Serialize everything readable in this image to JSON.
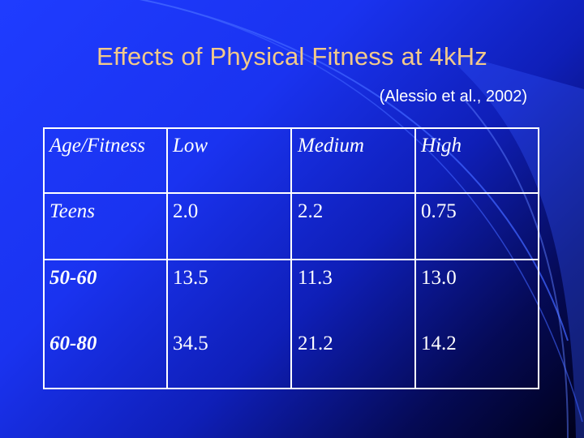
{
  "slide": {
    "title": "Effects of Physical Fitness at 4kHz",
    "citation": "(Alessio et al., 2002)"
  },
  "table": {
    "headers": [
      "Age/Fitness",
      "Low",
      "Medium",
      "High"
    ],
    "rows": [
      {
        "label": "Teens",
        "values": [
          "2.0",
          "2.2",
          "0.75"
        ]
      },
      {
        "label": "50-60",
        "values": [
          "13.5",
          "11.3",
          "13.0"
        ]
      },
      {
        "label": "60-80",
        "values": [
          "34.5",
          "21.2",
          "14.2"
        ]
      }
    ]
  },
  "colors": {
    "title": "#f2c98a",
    "text": "#ffffff",
    "background_start": "#1f3cff",
    "background_end": "#000018",
    "arc": "#4a6dff"
  }
}
